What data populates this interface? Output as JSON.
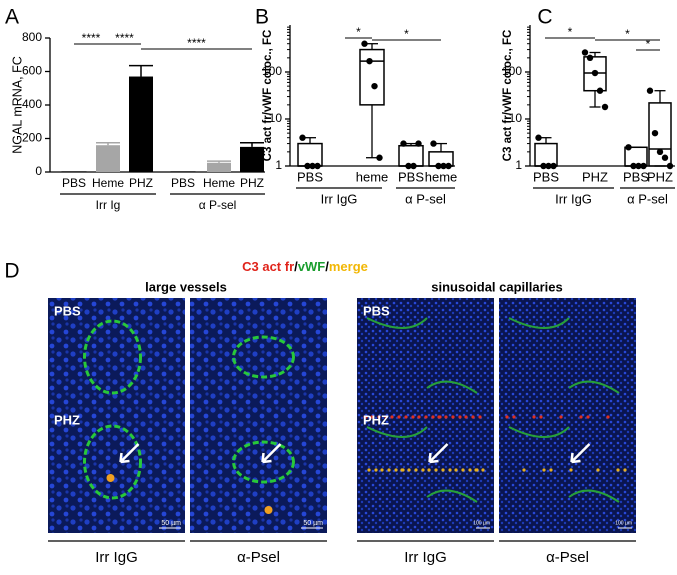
{
  "chart_data": [
    {
      "type": "bar",
      "panel": "A",
      "ylabel": "NGAL mRNA, FC",
      "categories": [
        "PBS",
        "Heme",
        "PHZ",
        "PBS",
        "Heme",
        "PHZ"
      ],
      "groups": [
        "Irr Ig",
        "α P-sel"
      ],
      "values": [
        1,
        160,
        570,
        1,
        55,
        150
      ],
      "errors": [
        0,
        15,
        65,
        0,
        10,
        25
      ],
      "colors": [
        "#ffffff",
        "#a6a6a6",
        "#000000",
        "#ffffff",
        "#a6a6a6",
        "#000000"
      ],
      "ylim": [
        0,
        800
      ],
      "yticks": [
        0,
        200,
        400,
        600,
        800
      ],
      "annotations": [
        "****",
        "****",
        "****"
      ]
    },
    {
      "type": "box",
      "panel": "B",
      "ylabel": "C3 act fr/vWF coloc., FC",
      "log": true,
      "categories": [
        "PBS",
        "heme",
        "PBS",
        "heme"
      ],
      "groups": [
        "Irr IgG",
        "α P-sel"
      ],
      "boxes": [
        {
          "min": 1,
          "q1": 1,
          "median": 1,
          "q3": 3,
          "max": 4
        },
        {
          "min": 1.5,
          "q1": 20,
          "median": 170,
          "q3": 300,
          "max": 400
        },
        {
          "min": 1,
          "q1": 1,
          "median": 1,
          "q3": 2.7,
          "max": 3
        },
        {
          "min": 1,
          "q1": 1,
          "median": 1,
          "q3": 2,
          "max": 3
        }
      ],
      "points": [
        [
          4,
          1,
          1,
          1
        ],
        [
          400,
          170,
          50,
          1.5
        ],
        [
          3,
          1,
          1,
          3
        ],
        [
          3,
          1,
          1,
          1
        ]
      ],
      "ylim": [
        1,
        1000
      ],
      "yticks": [
        1,
        10,
        100
      ],
      "annotations": [
        "*",
        "*"
      ]
    },
    {
      "type": "box",
      "panel": "C",
      "ylabel": "C3 act fr/vWF coloc., FC",
      "log": true,
      "categories": [
        "PBS",
        "PHZ",
        "PBS",
        "PHZ"
      ],
      "groups": [
        "Irr IgG",
        "α P-sel"
      ],
      "boxes": [
        {
          "min": 1,
          "q1": 1,
          "median": 1,
          "q3": 3,
          "max": 4
        },
        {
          "min": 18,
          "q1": 40,
          "median": 95,
          "q3": 210,
          "max": 260
        },
        {
          "min": 1,
          "q1": 1,
          "median": 1,
          "q3": 2.5,
          "max": 2.5
        },
        {
          "min": 1,
          "q1": 1,
          "median": 2.3,
          "q3": 22,
          "max": 40
        }
      ],
      "points": [
        [
          4,
          1,
          1,
          1
        ],
        [
          260,
          200,
          95,
          40,
          18
        ],
        [
          2.5,
          1,
          1,
          1
        ],
        [
          40,
          5,
          2,
          1.5,
          1
        ]
      ],
      "ylim": [
        1,
        1000
      ],
      "yticks": [
        1,
        10,
        100
      ],
      "annotations": [
        "*",
        "*",
        "*"
      ]
    }
  ],
  "panel_d": {
    "letter": "D",
    "legend": [
      "C3 act fr",
      "/",
      "vWF",
      "/",
      "merge"
    ],
    "titles": [
      "large vessels",
      "sinusoidal capillaries"
    ],
    "row_labels": [
      "PBS",
      "PHZ"
    ],
    "scale_bars": [
      "50 µm",
      "100 µm"
    ],
    "column_labels": [
      "Irr IgG",
      "α-Psel"
    ]
  }
}
